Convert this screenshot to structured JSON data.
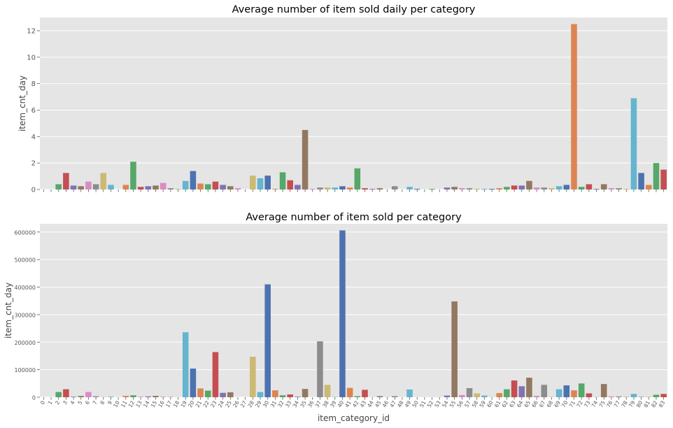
{
  "chart_data": [
    {
      "type": "bar",
      "title": "Average number of item sold daily per category",
      "xlabel": "",
      "ylabel": "item_cnt_day",
      "ylim": [
        0,
        13
      ],
      "yticks": [
        0,
        2,
        4,
        6,
        8,
        10,
        12
      ],
      "xtick_labels_shown": false,
      "categories": [
        "0",
        "1",
        "2",
        "3",
        "4",
        "5",
        "6",
        "7",
        "8",
        "9",
        "10",
        "11",
        "12",
        "13",
        "14",
        "15",
        "16",
        "17",
        "18",
        "19",
        "20",
        "21",
        "22",
        "23",
        "24",
        "25",
        "26",
        "27",
        "28",
        "29",
        "30",
        "31",
        "32",
        "33",
        "34",
        "35",
        "36",
        "37",
        "38",
        "39",
        "40",
        "41",
        "42",
        "43",
        "44",
        "45",
        "46",
        "47",
        "48",
        "49",
        "50",
        "51",
        "52",
        "53",
        "54",
        "55",
        "56",
        "57",
        "58",
        "59",
        "60",
        "61",
        "62",
        "63",
        "64",
        "65",
        "66",
        "67",
        "68",
        "69",
        "70",
        "71",
        "72",
        "73",
        "74",
        "75",
        "76",
        "77",
        "78",
        "79",
        "80",
        "81",
        "82",
        "83"
      ],
      "values": [
        0,
        0,
        0.4,
        1.25,
        0.3,
        0.25,
        0.6,
        0.4,
        1.25,
        0.35,
        0,
        0.35,
        2.1,
        0.2,
        0.25,
        0.3,
        0.5,
        0.1,
        0.05,
        0.65,
        1.4,
        0.45,
        0.4,
        0.6,
        0.35,
        0.25,
        0.1,
        0,
        1.05,
        0.85,
        1.05,
        0.05,
        1.3,
        0.7,
        0.35,
        4.5,
        0.05,
        0.15,
        0.15,
        0.15,
        0.25,
        0.15,
        1.6,
        0.1,
        0.05,
        0.1,
        0,
        0.25,
        0,
        0.2,
        0.05,
        0,
        0.05,
        0,
        0.15,
        0.2,
        0.1,
        0.1,
        0.05,
        0.05,
        0.05,
        0.1,
        0.2,
        0.3,
        0.3,
        0.65,
        0.15,
        0.15,
        0.1,
        0.25,
        0.35,
        12.5,
        0.2,
        0.4,
        0.05,
        0.4,
        0.1,
        0.1,
        0.05,
        6.9,
        1.25,
        0.35,
        2.0,
        1.5
      ]
    },
    {
      "type": "bar",
      "title": "Average number of item sold per category",
      "xlabel": "item_category_id",
      "ylabel": "item_cnt_day",
      "ylim": [
        0,
        630000
      ],
      "yticks": [
        0,
        100000,
        200000,
        300000,
        400000,
        500000,
        600000
      ],
      "categories": [
        "0",
        "1",
        "2",
        "3",
        "4",
        "5",
        "6",
        "7",
        "8",
        "9",
        "10",
        "11",
        "12",
        "13",
        "14",
        "15",
        "16",
        "17",
        "18",
        "19",
        "20",
        "21",
        "22",
        "23",
        "24",
        "25",
        "26",
        "27",
        "28",
        "29",
        "30",
        "31",
        "32",
        "33",
        "34",
        "35",
        "36",
        "37",
        "38",
        "39",
        "40",
        "41",
        "42",
        "43",
        "44",
        "45",
        "46",
        "47",
        "48",
        "49",
        "50",
        "51",
        "52",
        "53",
        "54",
        "55",
        "56",
        "57",
        "58",
        "59",
        "60",
        "61",
        "62",
        "63",
        "64",
        "65",
        "66",
        "67",
        "68",
        "69",
        "70",
        "71",
        "72",
        "73",
        "74",
        "75",
        "76",
        "77",
        "78",
        "79",
        "80",
        "81",
        "82",
        "83"
      ],
      "values": [
        0,
        0,
        19000,
        29000,
        2000,
        4500,
        19000,
        3500,
        800,
        2000,
        100,
        5000,
        7000,
        1000,
        3000,
        5000,
        2000,
        1000,
        500,
        236000,
        104000,
        32000,
        24000,
        164000,
        16000,
        18000,
        100,
        100,
        147000,
        19000,
        410000,
        25000,
        7000,
        10000,
        2000,
        30000,
        0,
        203000,
        45000,
        1000,
        606000,
        34000,
        4000,
        27000,
        300,
        4000,
        500,
        4000,
        300,
        28000,
        300,
        300,
        300,
        300,
        6000,
        348000,
        8000,
        33000,
        14000,
        6000,
        300,
        15000,
        29000,
        61000,
        40000,
        71000,
        5000,
        45000,
        1000,
        29000,
        43000,
        25000,
        50000,
        14000,
        500,
        48000,
        3000,
        3000,
        2000,
        12000,
        1000,
        1000,
        9000,
        12000
      ]
    }
  ],
  "palette": [
    "#4c72b0",
    "#dd8452",
    "#55a868",
    "#c44e52",
    "#8172b3",
    "#937860",
    "#da8bc3",
    "#8c8c8c",
    "#ccb974",
    "#64b5cd"
  ],
  "axes_background": "#e5e5e5",
  "grid_color": "#ffffff"
}
